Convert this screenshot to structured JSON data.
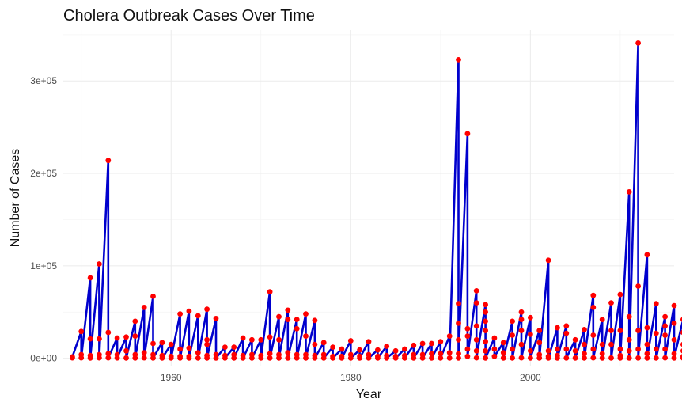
{
  "chart_data": {
    "type": "line",
    "title": "Cholera Outbreak Cases Over Time",
    "xlabel": "Year",
    "ylabel": "Number of Cases",
    "xlim": [
      1948,
      2016
    ],
    "ylim": [
      -8000,
      355000
    ],
    "x_ticks": [
      1960,
      1980,
      2000
    ],
    "x_tick_labels": [
      "1960",
      "1980",
      "2000"
    ],
    "y_ticks": [
      0,
      100000,
      200000,
      300000
    ],
    "y_tick_labels": [
      "0e+00",
      "1e+05",
      "2e+05",
      "3e+05"
    ],
    "grid": true,
    "legend": "none",
    "colors": {
      "line": "#0000cd",
      "point": "#ff0000"
    },
    "series": [
      {
        "points": [
          [
            1949,
            500
          ],
          [
            1949,
            1500
          ],
          [
            1950,
            29000
          ],
          [
            1950,
            4000
          ],
          [
            1950,
            500
          ],
          [
            1951,
            87000
          ],
          [
            1951,
            21000
          ],
          [
            1951,
            3000
          ],
          [
            1951,
            300
          ],
          [
            1952,
            102000
          ],
          [
            1952,
            21000
          ],
          [
            1952,
            4000
          ],
          [
            1952,
            500
          ],
          [
            1953,
            214000
          ],
          [
            1953,
            28000
          ],
          [
            1953,
            5000
          ],
          [
            1953,
            500
          ],
          [
            1954,
            22000
          ],
          [
            1954,
            4000
          ],
          [
            1954,
            400
          ],
          [
            1955,
            23000
          ],
          [
            1955,
            8000
          ],
          [
            1955,
            300
          ],
          [
            1956,
            40000
          ],
          [
            1956,
            24000
          ],
          [
            1956,
            4000
          ],
          [
            1956,
            300
          ],
          [
            1957,
            55000
          ],
          [
            1957,
            6000
          ],
          [
            1957,
            500
          ],
          [
            1958,
            67000
          ],
          [
            1958,
            16000
          ],
          [
            1958,
            4000
          ],
          [
            1958,
            300
          ],
          [
            1959,
            17000
          ],
          [
            1959,
            3000
          ],
          [
            1959,
            200
          ],
          [
            1960,
            15000
          ],
          [
            1960,
            2000
          ],
          [
            1960,
            200
          ],
          [
            1961,
            48000
          ],
          [
            1961,
            10000
          ],
          [
            1961,
            2000
          ],
          [
            1961,
            200
          ],
          [
            1962,
            51000
          ],
          [
            1962,
            11000
          ],
          [
            1962,
            2000
          ],
          [
            1962,
            200
          ],
          [
            1963,
            46000
          ],
          [
            1963,
            6000
          ],
          [
            1963,
            200
          ],
          [
            1964,
            53000
          ],
          [
            1964,
            20000
          ],
          [
            1964,
            15000
          ],
          [
            1964,
            3000
          ],
          [
            1964,
            300
          ],
          [
            1965,
            43000
          ],
          [
            1965,
            4000
          ],
          [
            1965,
            200
          ],
          [
            1966,
            12000
          ],
          [
            1966,
            3000
          ],
          [
            1966,
            200
          ],
          [
            1967,
            12000
          ],
          [
            1967,
            4000
          ],
          [
            1967,
            200
          ],
          [
            1968,
            22000
          ],
          [
            1968,
            3000
          ],
          [
            1968,
            200
          ],
          [
            1969,
            20000
          ],
          [
            1969,
            4000
          ],
          [
            1969,
            200
          ],
          [
            1970,
            20000
          ],
          [
            1970,
            3000
          ],
          [
            1970,
            200
          ],
          [
            1971,
            72000
          ],
          [
            1971,
            23000
          ],
          [
            1971,
            5000
          ],
          [
            1971,
            300
          ],
          [
            1972,
            45000
          ],
          [
            1972,
            20000
          ],
          [
            1972,
            4000
          ],
          [
            1972,
            300
          ],
          [
            1973,
            52000
          ],
          [
            1973,
            42000
          ],
          [
            1973,
            6000
          ],
          [
            1973,
            300
          ],
          [
            1974,
            42000
          ],
          [
            1974,
            32000
          ],
          [
            1974,
            4000
          ],
          [
            1974,
            300
          ],
          [
            1975,
            48000
          ],
          [
            1975,
            24000
          ],
          [
            1975,
            4000
          ],
          [
            1975,
            300
          ],
          [
            1976,
            41000
          ],
          [
            1976,
            15000
          ],
          [
            1976,
            3000
          ],
          [
            1976,
            200
          ],
          [
            1977,
            17000
          ],
          [
            1977,
            4000
          ],
          [
            1977,
            200
          ],
          [
            1978,
            12000
          ],
          [
            1978,
            2000
          ],
          [
            1978,
            200
          ],
          [
            1979,
            10000
          ],
          [
            1979,
            2000
          ],
          [
            1979,
            200
          ],
          [
            1980,
            19000
          ],
          [
            1980,
            4000
          ],
          [
            1980,
            200
          ],
          [
            1981,
            9000
          ],
          [
            1981,
            2000
          ],
          [
            1981,
            200
          ],
          [
            1982,
            18000
          ],
          [
            1982,
            4000
          ],
          [
            1982,
            200
          ],
          [
            1983,
            9000
          ],
          [
            1983,
            2000
          ],
          [
            1983,
            200
          ],
          [
            1984,
            13000
          ],
          [
            1984,
            3000
          ],
          [
            1984,
            200
          ],
          [
            1985,
            8000
          ],
          [
            1985,
            2000
          ],
          [
            1985,
            200
          ],
          [
            1986,
            10000
          ],
          [
            1986,
            3000
          ],
          [
            1986,
            200
          ],
          [
            1987,
            14000
          ],
          [
            1987,
            4000
          ],
          [
            1987,
            200
          ],
          [
            1988,
            16000
          ],
          [
            1988,
            4000
          ],
          [
            1988,
            200
          ],
          [
            1989,
            16000
          ],
          [
            1989,
            5000
          ],
          [
            1989,
            200
          ],
          [
            1990,
            18000
          ],
          [
            1990,
            5000
          ],
          [
            1990,
            200
          ],
          [
            1991,
            24000
          ],
          [
            1991,
            6000
          ],
          [
            1991,
            300
          ],
          [
            1992,
            323000
          ],
          [
            1992,
            59000
          ],
          [
            1992,
            38000
          ],
          [
            1992,
            20000
          ],
          [
            1992,
            5000
          ],
          [
            1992,
            300
          ],
          [
            1993,
            243000
          ],
          [
            1993,
            32000
          ],
          [
            1993,
            24000
          ],
          [
            1993,
            10000
          ],
          [
            1993,
            2000
          ],
          [
            1994,
            73000
          ],
          [
            1994,
            60000
          ],
          [
            1994,
            35000
          ],
          [
            1994,
            20000
          ],
          [
            1994,
            8000
          ],
          [
            1994,
            500
          ],
          [
            1995,
            58000
          ],
          [
            1995,
            50000
          ],
          [
            1995,
            40000
          ],
          [
            1995,
            30000
          ],
          [
            1995,
            18000
          ],
          [
            1995,
            8000
          ],
          [
            1995,
            300
          ],
          [
            1996,
            22000
          ],
          [
            1996,
            10000
          ],
          [
            1996,
            2000
          ],
          [
            1997,
            17000
          ],
          [
            1997,
            6000
          ],
          [
            1997,
            300
          ],
          [
            1998,
            40000
          ],
          [
            1998,
            25000
          ],
          [
            1998,
            10000
          ],
          [
            1998,
            300
          ],
          [
            1999,
            50000
          ],
          [
            1999,
            42000
          ],
          [
            1999,
            30000
          ],
          [
            1999,
            15000
          ],
          [
            1999,
            500
          ],
          [
            2000,
            44000
          ],
          [
            2000,
            26000
          ],
          [
            2000,
            8000
          ],
          [
            2000,
            300
          ],
          [
            2001,
            30000
          ],
          [
            2001,
            17000
          ],
          [
            2001,
            4000
          ],
          [
            2001,
            300
          ],
          [
            2002,
            106000
          ],
          [
            2002,
            8000
          ],
          [
            2002,
            2000
          ],
          [
            2002,
            200
          ],
          [
            2003,
            33000
          ],
          [
            2003,
            10000
          ],
          [
            2003,
            3000
          ],
          [
            2003,
            200
          ],
          [
            2004,
            35000
          ],
          [
            2004,
            27000
          ],
          [
            2004,
            10000
          ],
          [
            2004,
            300
          ],
          [
            2005,
            20000
          ],
          [
            2005,
            8000
          ],
          [
            2005,
            300
          ],
          [
            2006,
            31000
          ],
          [
            2006,
            15000
          ],
          [
            2006,
            5000
          ],
          [
            2006,
            300
          ],
          [
            2007,
            68000
          ],
          [
            2007,
            55000
          ],
          [
            2007,
            25000
          ],
          [
            2007,
            10000
          ],
          [
            2007,
            500
          ],
          [
            2008,
            42000
          ],
          [
            2008,
            15000
          ],
          [
            2008,
            5000
          ],
          [
            2008,
            300
          ],
          [
            2009,
            60000
          ],
          [
            2009,
            30000
          ],
          [
            2009,
            15000
          ],
          [
            2009,
            300
          ],
          [
            2010,
            69000
          ],
          [
            2010,
            30000
          ],
          [
            2010,
            10000
          ],
          [
            2010,
            3000
          ],
          [
            2010,
            300
          ],
          [
            2011,
            180000
          ],
          [
            2011,
            45000
          ],
          [
            2011,
            20000
          ],
          [
            2011,
            8000
          ],
          [
            2011,
            300
          ],
          [
            2012,
            341000
          ],
          [
            2012,
            78000
          ],
          [
            2012,
            30000
          ],
          [
            2012,
            10000
          ],
          [
            2012,
            300
          ],
          [
            2013,
            112000
          ],
          [
            2013,
            33000
          ],
          [
            2013,
            15000
          ],
          [
            2013,
            5000
          ],
          [
            2013,
            300
          ],
          [
            2014,
            59000
          ],
          [
            2014,
            27000
          ],
          [
            2014,
            10000
          ],
          [
            2014,
            300
          ],
          [
            2015,
            45000
          ],
          [
            2015,
            35000
          ],
          [
            2015,
            25000
          ],
          [
            2015,
            10000
          ],
          [
            2015,
            500
          ],
          [
            2016,
            57000
          ],
          [
            2016,
            38000
          ],
          [
            2016,
            20000
          ],
          [
            2016,
            5000
          ],
          [
            2016,
            300
          ],
          [
            2017,
            42000
          ],
          [
            2017,
            28000
          ],
          [
            2017,
            15000
          ],
          [
            2017,
            8000
          ],
          [
            2017,
            2000
          ],
          [
            2017,
            300
          ]
        ]
      }
    ]
  }
}
